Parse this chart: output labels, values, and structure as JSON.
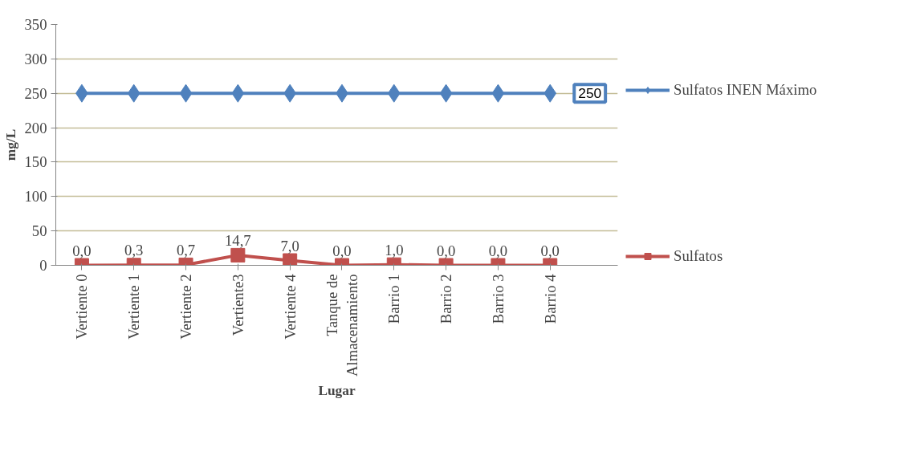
{
  "chart_data": {
    "type": "line",
    "xlabel": "Lugar",
    "ylabel": "mg/L",
    "categories": [
      "Vertiente 0",
      "Vertiente 1",
      "Vertiente 2",
      "Vertiente3",
      "Vertiente 4",
      "Tanque de Almacenamiento",
      "Barrio 1",
      "Barrio 2",
      "Barrio 3",
      "Barrio 4"
    ],
    "series": [
      {
        "name": "Sulfatos INEN Máximo",
        "color": "#4f81bd",
        "marker": "diamond",
        "values": [
          250,
          250,
          250,
          250,
          250,
          250,
          250,
          250,
          250,
          250
        ],
        "value_labels": [
          null,
          null,
          null,
          null,
          null,
          null,
          null,
          null,
          null,
          "250"
        ]
      },
      {
        "name": "Sulfatos",
        "color": "#c0504d",
        "marker": "square",
        "values": [
          0.0,
          0.3,
          0.7,
          14.7,
          7.0,
          0.0,
          1.0,
          0.0,
          0.0,
          0.0
        ],
        "value_labels": [
          "0,0",
          "0,3",
          "0,7",
          "14,7",
          "7,0",
          "0,0",
          "1,0",
          "0,0",
          "0,0",
          "0,0"
        ]
      }
    ],
    "ylim": [
      0,
      350
    ],
    "yticks": [
      0,
      50,
      100,
      150,
      200,
      250,
      300,
      350
    ],
    "grid": "y",
    "legend": "right",
    "line_style": "solid"
  }
}
